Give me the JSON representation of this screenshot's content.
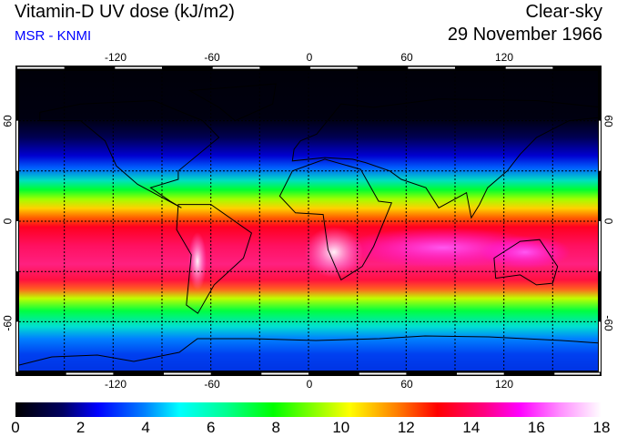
{
  "header": {
    "title": "Vitamin-D UV dose (kJ/m2)",
    "source": "MSR - KNMI",
    "condition": "Clear-sky",
    "date": "29 November 1966"
  },
  "map": {
    "lon_ticks": [
      "-120",
      "-60",
      "0",
      "60",
      "120"
    ],
    "lat_ticks": [
      "60",
      "0",
      "-60"
    ]
  },
  "colorbar": {
    "ticks": [
      "0",
      "2",
      "4",
      "6",
      "8",
      "10",
      "12",
      "14",
      "16",
      "18"
    ],
    "min": 0,
    "max": 18,
    "unit": "kJ/m2"
  }
}
